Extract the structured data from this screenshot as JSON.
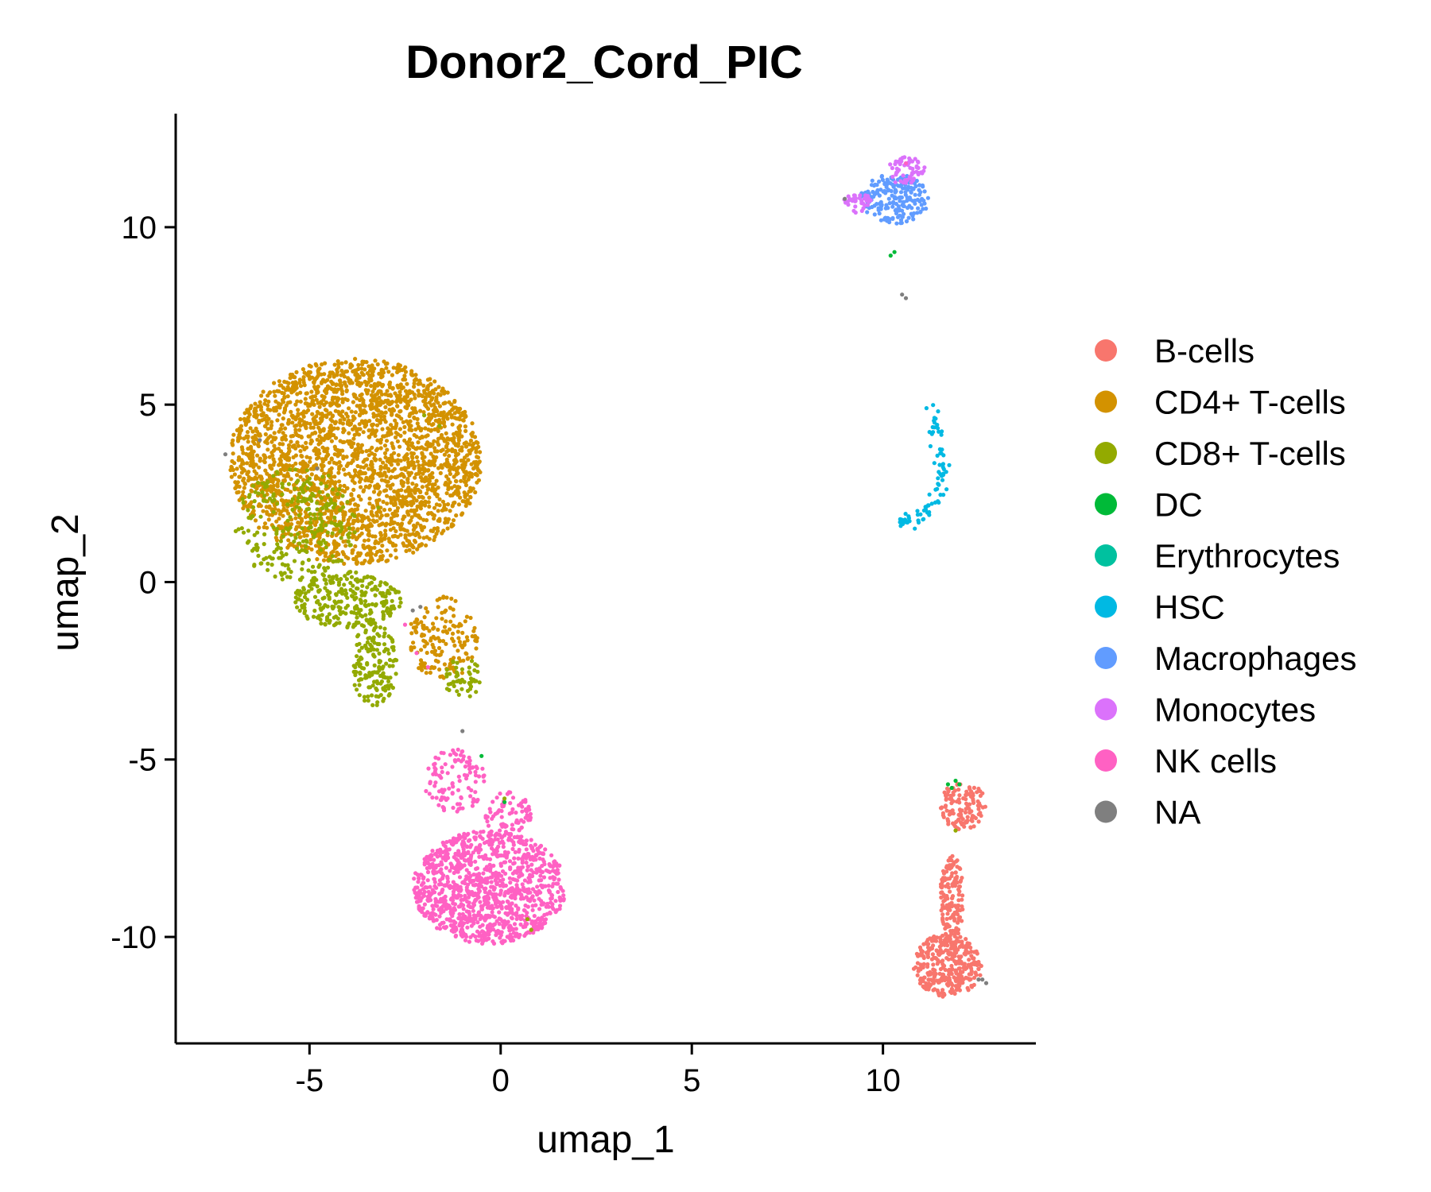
{
  "chart_data": {
    "type": "scatter",
    "title": "Donor2_Cord_PIC",
    "xlabel": "umap_1",
    "ylabel": "umap_2",
    "xlim": [
      -8.5,
      14
    ],
    "ylim": [
      -13,
      13.2
    ],
    "x_ticks": [
      -5,
      0,
      5,
      10
    ],
    "y_ticks": [
      -10,
      -5,
      0,
      5,
      10
    ],
    "x_tick_labels": [
      "-5",
      "0",
      "5",
      "10"
    ],
    "y_tick_labels": [
      "-10",
      "-5",
      "0",
      "5",
      "10"
    ],
    "grid": false,
    "legend_position": "right",
    "series": [
      {
        "name": "B-cells",
        "color": "#F8766D"
      },
      {
        "name": "CD4+ T-cells",
        "color": "#D39200"
      },
      {
        "name": "CD8+ T-cells",
        "color": "#93AA00"
      },
      {
        "name": "DC",
        "color": "#00BA38"
      },
      {
        "name": "Erythrocytes",
        "color": "#00C19F"
      },
      {
        "name": "HSC",
        "color": "#00B9E3"
      },
      {
        "name": "Macrophages",
        "color": "#619CFF"
      },
      {
        "name": "Monocytes",
        "color": "#DB72FB"
      },
      {
        "name": "NK cells",
        "color": "#FF61C3"
      },
      {
        "name": "NA",
        "color": "#7F7F7F"
      }
    ],
    "clusters": [
      {
        "series": "CD4+ T-cells",
        "shape": "ellipse",
        "cx": -3.8,
        "cy": 3.4,
        "rx": 3.3,
        "ry": 2.9,
        "n": 2600
      },
      {
        "series": "CD4+ T-cells",
        "shape": "ellipse",
        "cx": -1.5,
        "cy": -1.6,
        "rx": 0.9,
        "ry": 1.2,
        "n": 160
      },
      {
        "series": "CD8+ T-cells",
        "shape": "ellipse",
        "cx": -5.4,
        "cy": 1.6,
        "rx": 1.6,
        "ry": 1.6,
        "n": 260
      },
      {
        "series": "CD8+ T-cells",
        "shape": "ellipse",
        "cx": -4.0,
        "cy": -0.5,
        "rx": 1.4,
        "ry": 0.8,
        "n": 260
      },
      {
        "series": "CD8+ T-cells",
        "shape": "ellipse",
        "cx": -3.3,
        "cy": -2.3,
        "rx": 0.6,
        "ry": 1.2,
        "n": 160
      },
      {
        "series": "CD8+ T-cells",
        "shape": "ellipse",
        "cx": -1.0,
        "cy": -2.7,
        "rx": 0.5,
        "ry": 0.6,
        "n": 50
      },
      {
        "series": "NK cells",
        "shape": "ellipse",
        "cx": -0.3,
        "cy": -8.6,
        "rx": 2.0,
        "ry": 1.6,
        "n": 1100
      },
      {
        "series": "NK cells",
        "shape": "ellipse",
        "cx": -1.2,
        "cy": -5.6,
        "rx": 0.8,
        "ry": 0.9,
        "n": 110
      },
      {
        "series": "NK cells",
        "shape": "ellipse",
        "cx": 0.2,
        "cy": -6.6,
        "rx": 0.6,
        "ry": 0.7,
        "n": 90
      },
      {
        "series": "Macrophages",
        "shape": "ellipse",
        "cx": 10.3,
        "cy": 10.8,
        "rx": 0.9,
        "ry": 0.7,
        "n": 190
      },
      {
        "series": "Monocytes",
        "shape": "ellipse",
        "cx": 10.6,
        "cy": 11.6,
        "rx": 0.5,
        "ry": 0.4,
        "n": 55
      },
      {
        "series": "Monocytes",
        "shape": "ellipse",
        "cx": 9.3,
        "cy": 10.7,
        "rx": 0.4,
        "ry": 0.3,
        "n": 35
      },
      {
        "series": "HSC",
        "shape": "curve",
        "path": [
          [
            11.3,
            4.9
          ],
          [
            11.4,
            4.2
          ],
          [
            11.6,
            3.2
          ],
          [
            11.4,
            2.3
          ],
          [
            10.9,
            1.8
          ],
          [
            10.4,
            1.7
          ]
        ],
        "spread": 0.15,
        "n": 85
      },
      {
        "series": "B-cells",
        "shape": "ellipse",
        "cx": 11.7,
        "cy": -10.8,
        "rx": 0.9,
        "ry": 0.9,
        "n": 330
      },
      {
        "series": "B-cells",
        "shape": "ellipse",
        "cx": 11.8,
        "cy": -8.9,
        "rx": 0.3,
        "ry": 1.3,
        "n": 150
      },
      {
        "series": "B-cells",
        "shape": "ellipse",
        "cx": 12.1,
        "cy": -6.3,
        "rx": 0.6,
        "ry": 0.7,
        "n": 120
      }
    ],
    "scattered": [
      {
        "series": "DC",
        "points": [
          [
            10.2,
            9.2
          ],
          [
            10.3,
            9.3
          ],
          [
            11.7,
            -5.7
          ],
          [
            11.8,
            -5.8
          ],
          [
            11.9,
            -5.6
          ],
          [
            12.0,
            -5.7
          ],
          [
            0.1,
            -6.2
          ],
          [
            -0.5,
            -4.9
          ]
        ]
      },
      {
        "series": "NA",
        "points": [
          [
            -7.2,
            3.6
          ],
          [
            -6.3,
            4.0
          ],
          [
            -4.8,
            3.2
          ],
          [
            -2.3,
            -0.8
          ],
          [
            -2.1,
            -0.7
          ],
          [
            -1.0,
            -4.2
          ],
          [
            10.5,
            8.1
          ],
          [
            10.6,
            8.0
          ],
          [
            12.5,
            -11.2
          ],
          [
            12.6,
            -11.2
          ],
          [
            12.7,
            -11.3
          ],
          [
            9.0,
            10.8
          ]
        ]
      },
      {
        "series": "CD8+ T-cells",
        "points": [
          [
            -2.0,
            4.7
          ],
          [
            -1.6,
            4.4
          ],
          [
            -4.5,
            3.0
          ],
          [
            -3.2,
            2.1
          ],
          [
            0.1,
            -6.1
          ],
          [
            0.7,
            -9.5
          ],
          [
            0.8,
            -9.8
          ],
          [
            11.9,
            -7.0
          ]
        ]
      },
      {
        "series": "NK cells",
        "points": [
          [
            -2.5,
            -1.2
          ],
          [
            -2.2,
            -2.0
          ],
          [
            10.6,
            11.8
          ],
          [
            -1.9,
            -2.4
          ]
        ]
      }
    ]
  }
}
